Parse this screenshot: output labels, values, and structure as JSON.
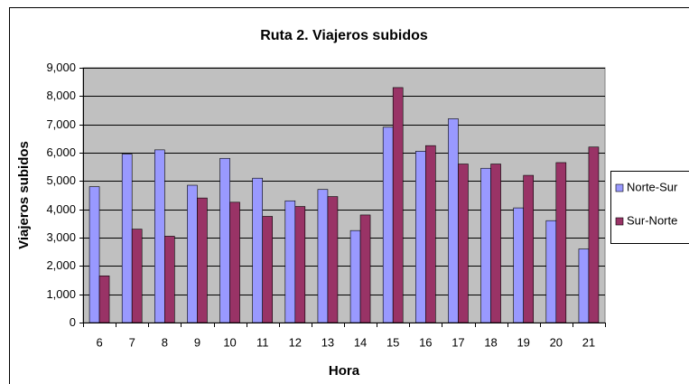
{
  "chart_data": {
    "type": "bar",
    "title": "Ruta 2. Viajeros subidos",
    "x_label": "Hora",
    "y_label": "Viajeros subidos",
    "categories": [
      "6",
      "7",
      "8",
      "9",
      "10",
      "11",
      "12",
      "13",
      "14",
      "15",
      "16",
      "17",
      "18",
      "19",
      "20",
      "21"
    ],
    "series": [
      {
        "name": "Norte-Sur",
        "color": "#9999ff",
        "values": [
          4800,
          5950,
          6100,
          4850,
          5800,
          5100,
          4300,
          4700,
          3250,
          6900,
          6050,
          7200,
          5450,
          4050,
          3600,
          2600
        ]
      },
      {
        "name": "Sur-Norte",
        "color": "#993366",
        "values": [
          1650,
          3300,
          3050,
          4400,
          4250,
          3750,
          4100,
          4450,
          3800,
          8300,
          6250,
          5600,
          5600,
          5200,
          5650,
          6200
        ]
      }
    ],
    "ylim": [
      0,
      9000
    ],
    "yticks": [
      0,
      {
        "value": 1000,
        "label": "1,000"
      },
      {
        "value": 2000,
        "label": "2,000"
      },
      {
        "value": 3000,
        "label": "3,000"
      },
      {
        "value": 4000,
        "label": "4,000"
      },
      {
        "value": 5000,
        "label": "5,000"
      },
      {
        "value": 6000,
        "label": "6,000"
      },
      {
        "value": 7000,
        "label": "7,000"
      },
      {
        "value": 8000,
        "label": "8,000"
      },
      {
        "value": 9000,
        "label": "9,000"
      }
    ],
    "grid": true,
    "legend": "right"
  }
}
